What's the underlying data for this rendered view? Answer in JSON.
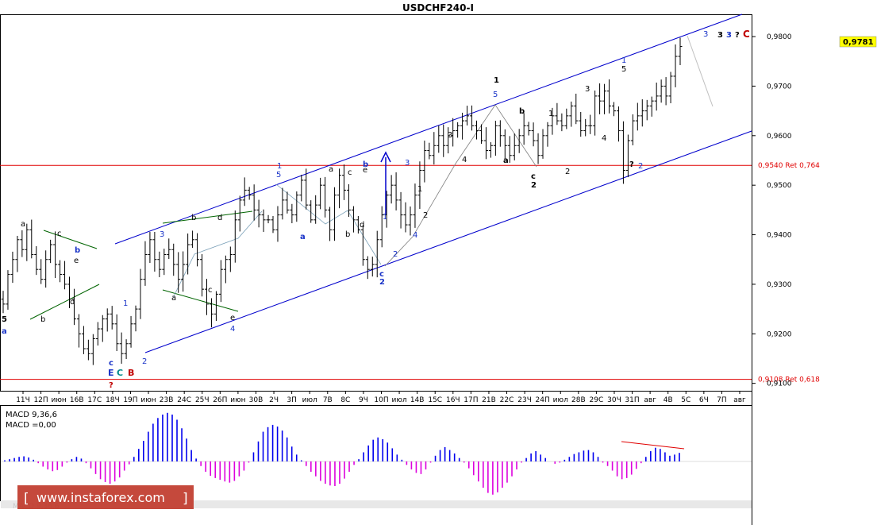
{
  "colors": {
    "background": "#ffffff",
    "candle": "#000000",
    "channel": "#0000cc",
    "retrace": "#e00000",
    "triangle": "#006400",
    "macd_up": "#0000ee",
    "macd_down": "#dd00dd",
    "wave_blue": "#1a34c8",
    "wave_black": "#000000",
    "wave_red": "#c00000",
    "wave_teal": "#008b8b",
    "current_price_box": "#ffff00"
  },
  "chart_data": [
    {
      "type": "candlestick",
      "title": "USDCHF240-I",
      "symbol": "USDCHF",
      "timeframe": "H4",
      "ylim": [
        0.9085,
        0.9845
      ],
      "y_ticks": [
        "0,9800",
        "0,9700",
        "0,9600",
        "0,9500",
        "0,9400",
        "0,9300",
        "0,9200",
        "0,9100"
      ],
      "x_ticks": [
        "11Ч",
        "12П",
        "июн",
        "16В",
        "17С",
        "18Ч",
        "19П",
        "июн",
        "23В",
        "24С",
        "25Ч",
        "26П",
        "июн",
        "30В",
        "2Ч",
        "3П",
        "июл",
        "7В",
        "8С",
        "9Ч",
        "10П",
        "июл",
        "14В",
        "15С",
        "16Ч",
        "17П",
        "21В",
        "22С",
        "23Ч",
        "24П",
        "июл",
        "28В",
        "29С",
        "30Ч",
        "31П",
        "авг",
        "4В",
        "5С",
        "6Ч",
        "7П",
        "авг"
      ],
      "current_price": "0,9781",
      "close_path": [
        0.926,
        0.932,
        0.935,
        0.939,
        0.937,
        0.941,
        0.936,
        0.933,
        0.931,
        0.935,
        0.938,
        0.934,
        0.932,
        0.93,
        0.927,
        0.923,
        0.92,
        0.917,
        0.916,
        0.919,
        0.921,
        0.923,
        0.924,
        0.922,
        0.918,
        0.916,
        0.918,
        0.922,
        0.925,
        0.931,
        0.936,
        0.939,
        0.935,
        0.933,
        0.936,
        0.937,
        0.934,
        0.931,
        0.934,
        0.938,
        0.939,
        0.935,
        0.929,
        0.926,
        0.924,
        0.928,
        0.933,
        0.935,
        0.936,
        0.943,
        0.947,
        0.949,
        0.948,
        0.945,
        0.944,
        0.943,
        0.943,
        0.941,
        0.944,
        0.947,
        0.945,
        0.944,
        0.948,
        0.951,
        0.946,
        0.943,
        0.946,
        0.95,
        0.945,
        0.941,
        0.948,
        0.952,
        0.949,
        0.945,
        0.943,
        0.941,
        0.935,
        0.933,
        0.934,
        0.939,
        0.944,
        0.948,
        0.95,
        0.947,
        0.944,
        0.942,
        0.944,
        0.948,
        0.953,
        0.957,
        0.956,
        0.958,
        0.96,
        0.958,
        0.96,
        0.961,
        0.962,
        0.963,
        0.964,
        0.962,
        0.961,
        0.959,
        0.957,
        0.958,
        0.962,
        0.96,
        0.958,
        0.956,
        0.958,
        0.96,
        0.962,
        0.961,
        0.959,
        0.956,
        0.96,
        0.962,
        0.964,
        0.963,
        0.962,
        0.964,
        0.966,
        0.963,
        0.961,
        0.962,
        0.962,
        0.968,
        0.967,
        0.969,
        0.966,
        0.965,
        0.961,
        0.953,
        0.959,
        0.963,
        0.964,
        0.965,
        0.966,
        0.967,
        0.968,
        0.97,
        0.968,
        0.972,
        0.976,
        0.978
      ],
      "macd_data": [
        0.2,
        0.4,
        0.6,
        0.8,
        0.9,
        0.7,
        0.3,
        -0.3,
        -0.9,
        -1.4,
        -1.7,
        -1.5,
        -0.9,
        -0.2,
        0.4,
        0.8,
        0.5,
        -0.3,
        -1.2,
        -2.2,
        -3.1,
        -3.6,
        -3.9,
        -3.5,
        -2.8,
        -1.6,
        -0.5,
        0.8,
        2.2,
        3.6,
        5.2,
        6.6,
        7.6,
        8.2,
        8.5,
        8.2,
        7.3,
        5.8,
        4.0,
        2.0,
        0.5,
        -0.8,
        -1.8,
        -2.5,
        -2.9,
        -3.2,
        -3.5,
        -3.7,
        -3.4,
        -2.6,
        -1.6,
        -0.2,
        1.6,
        3.5,
        5.2,
        6.0,
        6.4,
        6.1,
        5.4,
        4.2,
        2.6,
        1.2,
        0.2,
        -0.8,
        -1.8,
        -2.6,
        -3.4,
        -3.9,
        -4.2,
        -4.3,
        -3.9,
        -3.0,
        -1.8,
        -0.6,
        0.4,
        1.6,
        2.8,
        3.8,
        4.2,
        3.9,
        3.3,
        2.3,
        1.2,
        0.3,
        -0.6,
        -1.4,
        -2.0,
        -2.2,
        -1.4,
        -0.2,
        1.0,
        2.0,
        2.5,
        2.0,
        1.4,
        0.6,
        -0.2,
        -1.2,
        -2.4,
        -3.5,
        -4.6,
        -5.5,
        -5.8,
        -5.4,
        -4.6,
        -3.7,
        -2.6,
        -1.4,
        -0.2,
        0.6,
        1.4,
        1.8,
        1.2,
        0.6,
        0.0,
        -0.4,
        -0.2,
        0.3,
        0.8,
        1.3,
        1.6,
        1.9,
        2.0,
        1.6,
        0.8,
        -0.2,
        -0.8,
        -1.6,
        -2.6,
        -3.1,
        -2.9,
        -2.3,
        -1.3,
        -0.3,
        0.8,
        1.8,
        2.4,
        2.2,
        1.6,
        1.0,
        1.2,
        1.5
      ]
    }
  ],
  "macd_panel": {
    "title": "MACD 9,36,6",
    "signal_label": "MACD =0,00",
    "faded_label": "MACD 9,36,6"
  },
  "levels": [
    {
      "label": "0,9540 Ret 0,764",
      "price": 0.954
    },
    {
      "label": "0,9108 Ret 0,618",
      "price": 0.9108
    }
  ],
  "wave_labels": {
    "l01": "5",
    "l02": "a",
    "l03": "a",
    "l04": "b",
    "l05": "c",
    "l06": "e",
    "l07": "b",
    "l08": "d",
    "l09": "c",
    "l10": "?",
    "l11": "E",
    "l12": "C",
    "l13": "B",
    "l14": "1",
    "l15": "2",
    "l16": "3",
    "l17": "a",
    "l18": "b",
    "l19": "c",
    "l20": "d",
    "l21": "e",
    "l22": "4",
    "l23": "1",
    "l24": "5",
    "l25": "a",
    "l26": "a",
    "l27": "b",
    "l28": "c",
    "l29": "e",
    "l30": "b",
    "l31": "d",
    "l32": "3",
    "l33": "1",
    "l34": "2",
    "l35": "c",
    "l36": "2",
    "l37": "1",
    "l38": "2",
    "l39": "4",
    "l40": "3",
    "l41": "4",
    "l42": "1",
    "l43": "5",
    "l44": "a",
    "l45": "b",
    "l46": "c",
    "l47": "2",
    "l48": "1",
    "l49": "2",
    "l50": "3",
    "l51": "4",
    "l52": "1",
    "l53": "5",
    "l54": "?",
    "l55": "2",
    "l56": "3",
    "l57": "3",
    "l58": "3",
    "l59": "?",
    "l60": "C"
  },
  "watermark": "www.instaforex.com"
}
